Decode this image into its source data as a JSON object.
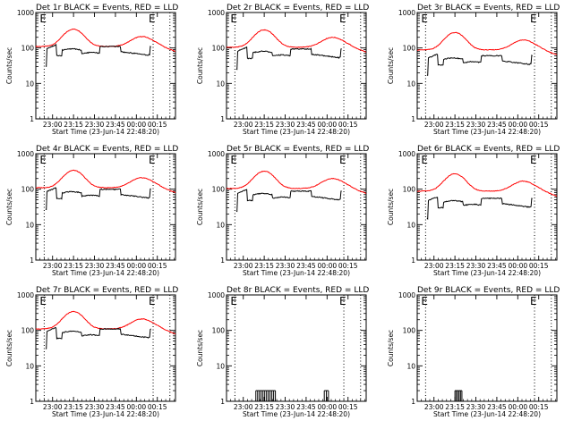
{
  "chart_data": {
    "type": "line",
    "xlabel": "Start Time (23-Jun-14 22:48:20)",
    "ylabel": "Counts/sec",
    "x_ticks": [
      "23:00",
      "23:15",
      "23:30",
      "23:45",
      "00:00",
      "00:15"
    ],
    "x_tick_minutes": [
      12,
      27,
      42,
      57,
      72,
      87
    ],
    "xlim_minutes": [
      0,
      100
    ],
    "y_scale": "log",
    "ylim": [
      1,
      1000
    ],
    "y_ticks": [
      {
        "v": 1,
        "label": "1"
      },
      {
        "v": 10,
        "label": "10"
      },
      {
        "v": 100,
        "label": "100"
      },
      {
        "v": 1000,
        "label": "1000"
      }
    ],
    "e_markers": [
      {
        "t": 6,
        "label": "E"
      },
      {
        "t": 84,
        "label": "E"
      }
    ],
    "marker_lines_minutes": [
      6,
      84,
      96
    ],
    "panels": [
      {
        "title": "Det 1r BLACK = Events, RED = LLD",
        "red_level": 1.0,
        "black_level": 1.0,
        "black_mode": "counts",
        "bursts": []
      },
      {
        "title": "Det 2r BLACK = Events, RED = LLD",
        "red_level": 0.95,
        "black_level": 0.85,
        "black_mode": "counts",
        "bursts": []
      },
      {
        "title": "Det 3r BLACK = Events, RED = LLD",
        "red_level": 0.8,
        "black_level": 0.55,
        "black_mode": "counts",
        "bursts": []
      },
      {
        "title": "Det 4r BLACK = Events, RED = LLD",
        "red_level": 1.0,
        "black_level": 0.9,
        "black_mode": "counts",
        "bursts": []
      },
      {
        "title": "Det 5r BLACK = Events, RED = LLD",
        "red_level": 0.95,
        "black_level": 0.8,
        "black_mode": "counts",
        "bursts": []
      },
      {
        "title": "Det 6r BLACK = Events, RED = LLD",
        "red_level": 0.8,
        "black_level": 0.5,
        "black_mode": "counts",
        "bursts": []
      },
      {
        "title": "Det 7r BLACK = Events, RED = LLD",
        "red_level": 1.0,
        "black_level": 1.0,
        "black_mode": "counts",
        "bursts": []
      },
      {
        "title": "Det 8r BLACK = Events, RED = LLD",
        "red_level": 0,
        "black_level": 0,
        "black_mode": "bursts",
        "bursts": [
          [
            21,
            35,
            12
          ],
          [
            70,
            73,
            3
          ]
        ]
      },
      {
        "title": "Det 9r BLACK = Events, RED = LLD",
        "red_level": 0,
        "black_level": 0,
        "black_mode": "bursts",
        "bursts": [
          [
            27,
            32,
            6
          ]
        ]
      }
    ]
  }
}
